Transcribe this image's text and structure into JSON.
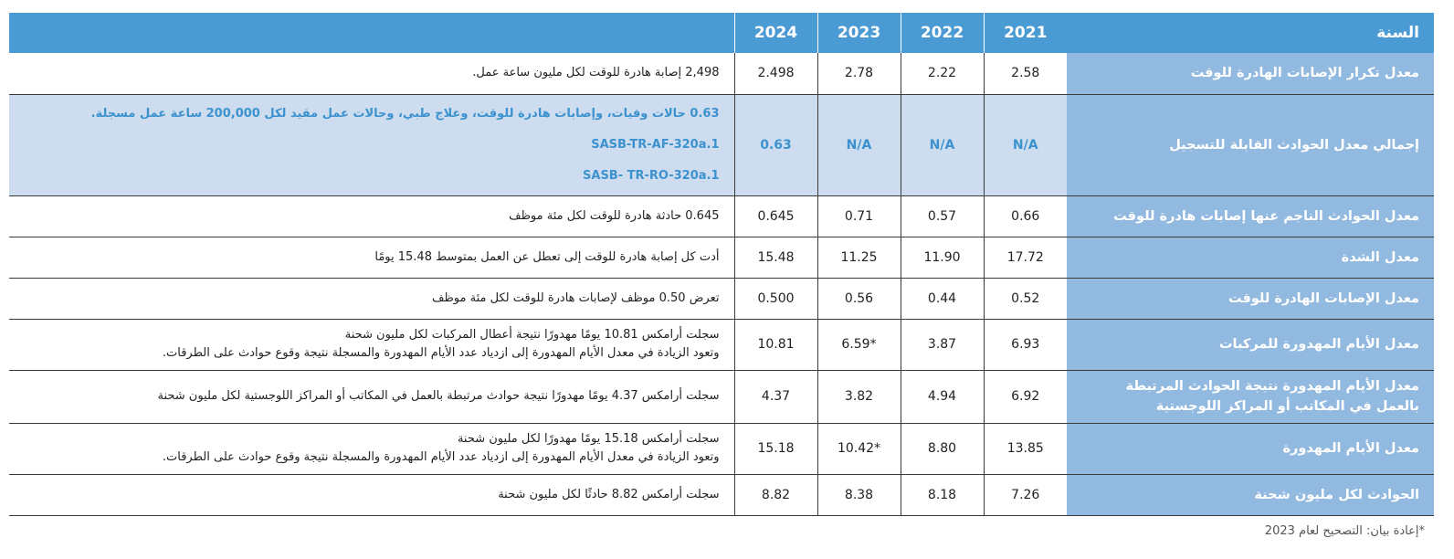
{
  "header": {
    "label": "السنة",
    "years": [
      "2021",
      "2022",
      "2023",
      "2024"
    ]
  },
  "rows": [
    {
      "label": "معدل تكرار الإصابات الهادرة للوقت",
      "values": [
        "2.58",
        "2.22",
        "2.78",
        "2.498"
      ],
      "desc": [
        "2,498 إصابة هادرة للوقت لكل مليون ساعة عمل."
      ]
    },
    {
      "label": "إجمالي معدل الحوادث القابلة للتسجيل",
      "values": [
        "N/A",
        "N/A",
        "N/A",
        "0.63"
      ],
      "desc": [
        "0.63 حالات وفيات، وإصابات هادرة للوقت، وعلاج طبي، وحالات عمل مقيد لكل 200,000 ساعة عمل مسجلة.",
        "SASB-TR-AF-320a.1",
        "SASB- TR-RO-320a.1"
      ]
    },
    {
      "label": "معدل الحوادث الناجم عنها إصابات هادرة للوقت",
      "values": [
        "0.66",
        "0.57",
        "0.71",
        "0.645"
      ],
      "desc": [
        "0.645 حادثة هادرة للوقت لكل مئة موظف"
      ]
    },
    {
      "label": "معدل الشدة",
      "values": [
        "17.72",
        "11.90",
        "11.25",
        "15.48"
      ],
      "desc": [
        "أدت كل إصابة هادرة للوقت إلى تعطل عن العمل بمتوسط 15.48 يومًا"
      ]
    },
    {
      "label": "معدل الإصابات الهادرة للوقت",
      "values": [
        "0.52",
        "0.44",
        "0.56",
        "0.500"
      ],
      "desc": [
        "تعرض 0.50 موظف لإصابات هادرة للوقت لكل مئة موظف"
      ]
    },
    {
      "label": "معدل الأيام المهدورة للمركبات",
      "values": [
        "6.93",
        "3.87",
        "*6.59",
        "10.81"
      ],
      "desc": [
        "سجلت أرامكس 10.81 يومًا مهدورًا نتيجة أعطال المركبات لكل مليون شحنة",
        "وتعود الزيادة في معدل الأيام المهدورة إلى ازدياد عدد الأيام المهدورة والمسجلة نتيجة وقوع حوادث على الطرقات."
      ]
    },
    {
      "label": "معدل الأيام المهدورة نتيجة الحوادث المرتبطة بالعمل في المكاتب أو المراكز اللوجستية",
      "values": [
        "6.92",
        "4.94",
        "3.82",
        "4.37"
      ],
      "desc": [
        "سجلت أرامكس 4.37 يومًا مهدورًا نتيجة حوادث مرتبطة بالعمل في المكاتب أو المراكز اللوجستية لكل مليون شحنة"
      ]
    },
    {
      "label": "معدل الأيام المهدورة",
      "values": [
        "13.85",
        "8.80",
        "*10.42",
        "15.18"
      ],
      "desc": [
        "سجلت أرامكس 15.18 يومًا مهدورًا لكل مليون شحنة",
        "وتعود الزيادة في معدل الأيام المهدورة إلى ازدياد عدد الأيام المهدورة والمسجلة نتيجة وقوع حوادث على الطرقات."
      ]
    },
    {
      "label": "الحوادث لكل مليون شحنة",
      "values": [
        "7.26",
        "8.18",
        "8.38",
        "8.82"
      ],
      "desc": [
        "سجلت أرامكس 8.82 حادثًا لكل مليون شحنة"
      ]
    }
  ],
  "footnote": "*إعادة بيان: التصحيح لعام 2023",
  "colors": {
    "header_bg": "#4a9ad4",
    "label_bg": "#92b9df",
    "highlight_bg": "#cddcee",
    "highlight_text": "#3c92cf"
  }
}
